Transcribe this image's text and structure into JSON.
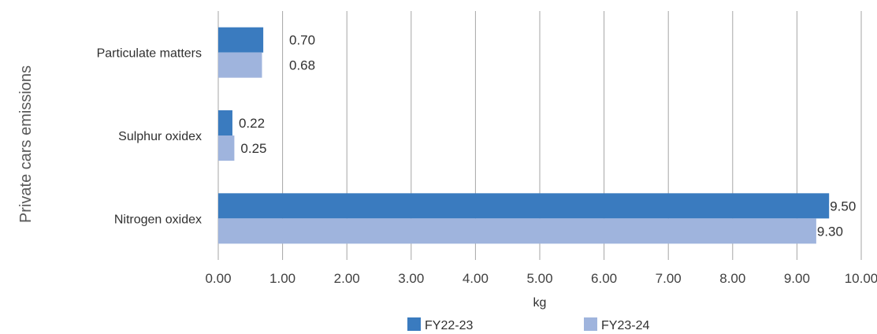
{
  "chart_data": {
    "type": "bar",
    "orientation": "horizontal",
    "ylabel": "Private cars emissions",
    "xlabel": "kg",
    "categories": [
      "Particulate matters",
      "Sulphur oxidex",
      "Nitrogen oxidex"
    ],
    "series": [
      {
        "name": "FY22-23",
        "color": "#3a7bbf",
        "values": [
          0.7,
          0.22,
          9.5
        ],
        "labels": [
          "0.70",
          "0.22",
          "9.50"
        ]
      },
      {
        "name": "FY23-24",
        "color": "#9fb4dd",
        "values": [
          0.68,
          0.25,
          9.3
        ],
        "labels": [
          "0.68",
          "0.25",
          "9.30"
        ]
      }
    ],
    "xlim": [
      0,
      10
    ],
    "x_ticks": [
      "0.00",
      "1.00",
      "2.00",
      "3.00",
      "4.00",
      "5.00",
      "6.00",
      "7.00",
      "8.00",
      "9.00",
      "10.00"
    ],
    "grid": "vertical",
    "legend_position": "bottom"
  }
}
